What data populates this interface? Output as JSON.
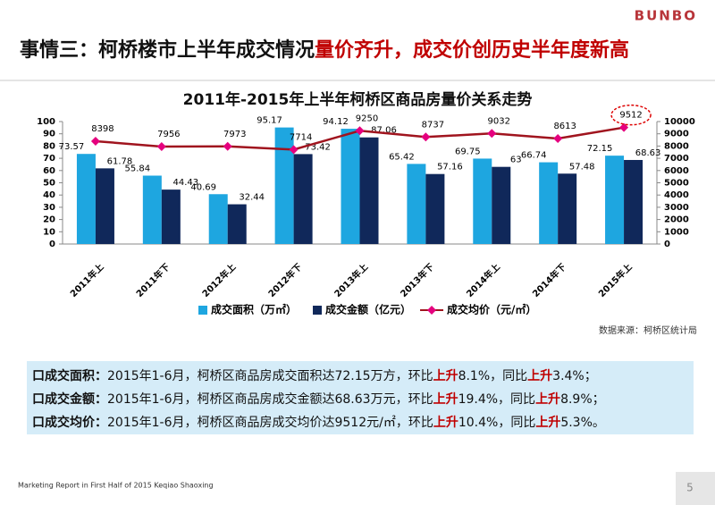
{
  "slide": {
    "logo": "BUNBO",
    "title_black": "事情三：柯桥楼市上半年成交情况",
    "title_red": "量价齐升，成交价创历史半年度新高",
    "source": "数据来源：柯桥区统计局",
    "notes": [
      {
        "label": "口成交面积：",
        "parts": [
          "2015年1-6月，柯桥区商品房成交面积达72.15万方，环比",
          "上升",
          "8.1%，同比",
          "上升",
          "3.4%；"
        ]
      },
      {
        "label": "口成交金额：",
        "parts": [
          "2015年1-6月，柯桥区商品房成交金额达68.63万元，环比",
          "上升",
          "19.4%，同比",
          "上升",
          "8.9%；"
        ]
      },
      {
        "label": "口成交均价：",
        "parts": [
          "2015年1-6月，柯桥区商品房成交均价达9512元/㎡，环比",
          "上升",
          "10.4%，同比",
          "上升",
          "5.3%。"
        ]
      }
    ],
    "footer": "Marketing Report in First Half of 2015 Keqiao Shaoxing",
    "page": "5"
  },
  "chart_data": {
    "type": "bar-line",
    "title": "2011年-2015年上半年柯桥区商品房量价关系走势",
    "categories": [
      "2011年上",
      "2011年下",
      "2012年上",
      "2012年下",
      "2013年上",
      "2013年下",
      "2014年上",
      "2014年下",
      "2015年上"
    ],
    "series": [
      {
        "name": "成交面积（万㎡）",
        "type": "bar",
        "color": "#1ea6e0",
        "values": [
          73.57,
          55.84,
          40.69,
          95.17,
          94.12,
          65.42,
          69.75,
          66.74,
          72.15
        ]
      },
      {
        "name": "成交金额（亿元）",
        "type": "bar",
        "color": "#10285a",
        "values": [
          61.78,
          44.43,
          32.44,
          73.42,
          87.06,
          57.16,
          63,
          57.48,
          68.63
        ]
      },
      {
        "name": "成交均价（元/㎡）",
        "type": "line",
        "axis": "y2",
        "color": "#a0141e",
        "marker_color": "#e5007e",
        "values": [
          8398,
          7956,
          7973,
          7714,
          9250,
          8737,
          9032,
          8613,
          9512
        ]
      }
    ],
    "ylim": [
      0,
      100
    ],
    "yticks": [
      0,
      10,
      20,
      30,
      40,
      50,
      60,
      70,
      80,
      90,
      100
    ],
    "y2lim": [
      0,
      10000
    ],
    "y2ticks": [
      0,
      1000,
      2000,
      3000,
      4000,
      5000,
      6000,
      7000,
      8000,
      9000,
      10000
    ],
    "legend": "bottom"
  }
}
